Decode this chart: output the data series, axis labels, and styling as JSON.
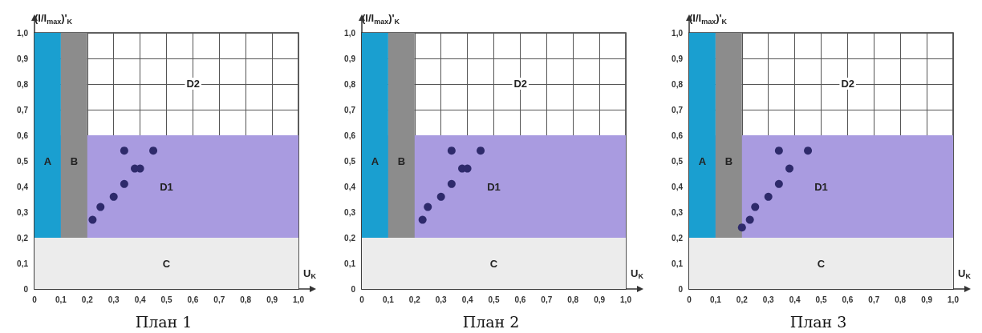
{
  "chart_data": [
    {
      "type": "scatter",
      "title": "План 1",
      "xlabel": "U$_{K}$",
      "ylabel": "(I/I$_{max}$)'$_{K}$",
      "xlim": [
        0,
        1
      ],
      "ylim": [
        0,
        1
      ],
      "xticks": [
        {
          "value": 0,
          "label": "0"
        },
        {
          "value": 0.1,
          "label": "0,1"
        },
        {
          "value": 0.2,
          "label": "0,2"
        },
        {
          "value": 0.3,
          "label": "0,3"
        },
        {
          "value": 0.4,
          "label": "0,4"
        },
        {
          "value": 0.5,
          "label": "0,5"
        },
        {
          "value": 0.6,
          "label": "0,6"
        },
        {
          "value": 0.7,
          "label": "0,7"
        },
        {
          "value": 0.8,
          "label": "0,8"
        },
        {
          "value": 0.9,
          "label": "0,9"
        },
        {
          "value": 1,
          "label": "1,0"
        }
      ],
      "yticks": [
        {
          "value": 0,
          "label": "0"
        },
        {
          "value": 0.1,
          "label": "0,1"
        },
        {
          "value": 0.2,
          "label": "0,2"
        },
        {
          "value": 0.3,
          "label": "0,3"
        },
        {
          "value": 0.4,
          "label": "0,4"
        },
        {
          "value": 0.5,
          "label": "0,5"
        },
        {
          "value": 0.6,
          "label": "0,6"
        },
        {
          "value": 0.7,
          "label": "0,7"
        },
        {
          "value": 0.8,
          "label": "0,8"
        },
        {
          "value": 0.9,
          "label": "0,9"
        },
        {
          "value": 1,
          "label": "1,0"
        }
      ],
      "grid": true,
      "marker": "circle",
      "bands": [
        {
          "axis": "y",
          "from": 0.2,
          "to": 0.6,
          "label": "D1",
          "color": "#a99be0"
        },
        {
          "axis": "x",
          "from": 0,
          "to": 0.1,
          "label": "A",
          "color": "#1a9fd0"
        },
        {
          "axis": "x",
          "from": 0.1,
          "to": 0.2,
          "label": "B",
          "color": "#8c8c8c"
        },
        {
          "axis": "y",
          "from": 0,
          "to": 0.2,
          "label": "C",
          "color": "#ececec"
        }
      ],
      "annotations": [
        "D2"
      ],
      "series": [
        {
          "color": "#2e2a6b",
          "x": [
            0.22,
            0.25,
            0.3,
            0.34,
            0.34,
            0.38,
            0.4,
            0.45
          ],
          "values": [
            0.27,
            0.32,
            0.36,
            0.41,
            0.54,
            0.47,
            0.47,
            0.54
          ]
        }
      ]
    },
    {
      "type": "scatter",
      "title": "План 2",
      "xlabel": "U$_{K}$",
      "ylabel": "(I/I$_{max}$)'$_{K}$",
      "xlim": [
        0,
        1
      ],
      "ylim": [
        0,
        1
      ],
      "xticks": [
        {
          "value": 0,
          "label": "0"
        },
        {
          "value": 0.1,
          "label": "0,1"
        },
        {
          "value": 0.2,
          "label": "0,2"
        },
        {
          "value": 0.3,
          "label": "0,3"
        },
        {
          "value": 0.4,
          "label": "0,4"
        },
        {
          "value": 0.5,
          "label": "0,5"
        },
        {
          "value": 0.6,
          "label": "0,6"
        },
        {
          "value": 0.7,
          "label": "0,7"
        },
        {
          "value": 0.8,
          "label": "0,8"
        },
        {
          "value": 0.9,
          "label": "0,9"
        },
        {
          "value": 1,
          "label": "1,0"
        }
      ],
      "yticks": [
        {
          "value": 0,
          "label": "0"
        },
        {
          "value": 0.1,
          "label": "0,1"
        },
        {
          "value": 0.2,
          "label": "0,2"
        },
        {
          "value": 0.3,
          "label": "0,3"
        },
        {
          "value": 0.4,
          "label": "0,4"
        },
        {
          "value": 0.5,
          "label": "0,5"
        },
        {
          "value": 0.6,
          "label": "0,6"
        },
        {
          "value": 0.7,
          "label": "0,7"
        },
        {
          "value": 0.8,
          "label": "0,8"
        },
        {
          "value": 0.9,
          "label": "0,9"
        },
        {
          "value": 1,
          "label": "1,0"
        }
      ],
      "grid": true,
      "marker": "circle",
      "bands": [
        {
          "axis": "y",
          "from": 0.2,
          "to": 0.6,
          "label": "D1",
          "color": "#a99be0"
        },
        {
          "axis": "x",
          "from": 0,
          "to": 0.1,
          "label": "A",
          "color": "#1a9fd0"
        },
        {
          "axis": "x",
          "from": 0.1,
          "to": 0.2,
          "label": "B",
          "color": "#8c8c8c"
        },
        {
          "axis": "y",
          "from": 0,
          "to": 0.2,
          "label": "C",
          "color": "#ececec"
        }
      ],
      "annotations": [
        "D2"
      ],
      "series": [
        {
          "color": "#2e2a6b",
          "x": [
            0.23,
            0.25,
            0.3,
            0.34,
            0.34,
            0.38,
            0.4,
            0.45
          ],
          "values": [
            0.27,
            0.32,
            0.36,
            0.41,
            0.54,
            0.47,
            0.47,
            0.54
          ]
        }
      ]
    },
    {
      "type": "scatter",
      "title": "План 3",
      "xlabel": "U$_{K}$",
      "ylabel": "(I/I$_{max}$)'$_{K}$",
      "xlim": [
        0,
        1
      ],
      "ylim": [
        0,
        1
      ],
      "xticks": [
        {
          "value": 0,
          "label": "0"
        },
        {
          "value": 0.1,
          "label": "0,1"
        },
        {
          "value": 0.2,
          "label": "0,2"
        },
        {
          "value": 0.3,
          "label": "0,3"
        },
        {
          "value": 0.4,
          "label": "0,4"
        },
        {
          "value": 0.5,
          "label": "0,5"
        },
        {
          "value": 0.6,
          "label": "0,6"
        },
        {
          "value": 0.7,
          "label": "0,7"
        },
        {
          "value": 0.8,
          "label": "0,8"
        },
        {
          "value": 0.9,
          "label": "0,9"
        },
        {
          "value": 1,
          "label": "1,0"
        }
      ],
      "yticks": [
        {
          "value": 0,
          "label": "0"
        },
        {
          "value": 0.1,
          "label": "0,1"
        },
        {
          "value": 0.2,
          "label": "0,2"
        },
        {
          "value": 0.3,
          "label": "0,3"
        },
        {
          "value": 0.4,
          "label": "0,4"
        },
        {
          "value": 0.5,
          "label": "0,5"
        },
        {
          "value": 0.6,
          "label": "0,6"
        },
        {
          "value": 0.7,
          "label": "0,7"
        },
        {
          "value": 0.8,
          "label": "0,8"
        },
        {
          "value": 0.9,
          "label": "0,9"
        },
        {
          "value": 1,
          "label": "1,0"
        }
      ],
      "grid": true,
      "marker": "circle",
      "bands": [
        {
          "axis": "y",
          "from": 0.2,
          "to": 0.6,
          "label": "D1",
          "color": "#a99be0"
        },
        {
          "axis": "x",
          "from": 0,
          "to": 0.1,
          "label": "A",
          "color": "#1a9fd0"
        },
        {
          "axis": "x",
          "from": 0.1,
          "to": 0.2,
          "label": "B",
          "color": "#8c8c8c"
        },
        {
          "axis": "y",
          "from": 0,
          "to": 0.2,
          "label": "C",
          "color": "#ececec"
        }
      ],
      "annotations": [
        "D2"
      ],
      "series": [
        {
          "color": "#2e2a6b",
          "x": [
            0.2,
            0.23,
            0.25,
            0.3,
            0.34,
            0.34,
            0.38,
            0.45
          ],
          "values": [
            0.24,
            0.27,
            0.32,
            0.36,
            0.41,
            0.54,
            0.47,
            0.54
          ]
        }
      ]
    }
  ]
}
